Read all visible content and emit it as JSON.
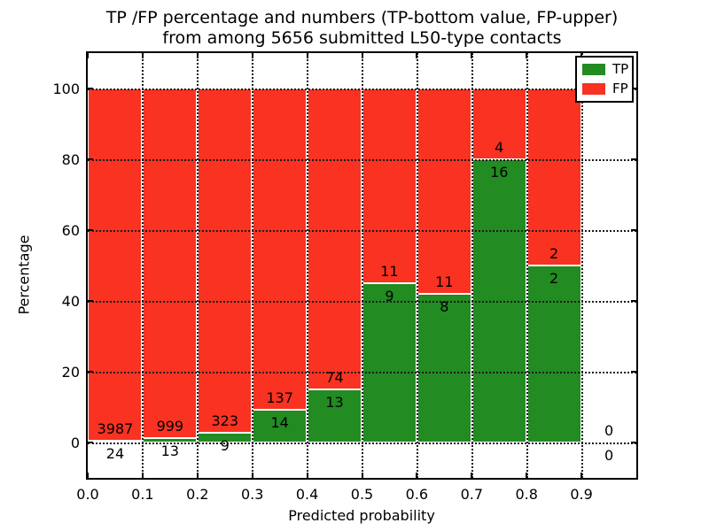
{
  "title": {
    "line1": "TP /FP percentage and numbers (TP-bottom value, FP-upper)",
    "line2": "from among 5656 submitted L50-type contacts"
  },
  "axes": {
    "xlabel": "Predicted probability",
    "ylabel": "Percentage",
    "x_tick_labels": [
      "0.0",
      "0.1",
      "0.2",
      "0.3",
      "0.4",
      "0.5",
      "0.6",
      "0.7",
      "0.8",
      "0.9"
    ],
    "y_tick_labels": [
      "0",
      "20",
      "40",
      "60",
      "80",
      "100"
    ],
    "y_ticks": [
      0,
      20,
      40,
      60,
      80,
      100
    ],
    "xlim": [
      0.0,
      1.0
    ],
    "ylim": [
      -10,
      110
    ],
    "grid": "dotted"
  },
  "legend": {
    "position": "upper right",
    "items": [
      {
        "label": "TP",
        "color": "#228B22"
      },
      {
        "label": "FP",
        "color": "#f93222"
      }
    ]
  },
  "colors": {
    "tp": "#228B22",
    "fp": "#f93222",
    "bar_edge": "#ffffff",
    "grid": "#1a1a1a",
    "text": "#000000",
    "background": "#ffffff"
  },
  "chart_data": {
    "type": "bar",
    "stacked": true,
    "title": "TP /FP percentage and numbers (TP-bottom value, FP-upper) from among 5656 submitted L50-type contacts",
    "xlabel": "Predicted probability",
    "ylabel": "Percentage",
    "total_submitted": 5656,
    "bin_width": 0.1,
    "bins": [
      {
        "x_start": 0.0,
        "x_end": 0.1,
        "center": 0.05,
        "tp_count": 24,
        "fp_count": 3987,
        "tp_pct": 0.6,
        "fp_pct": 99.4
      },
      {
        "x_start": 0.1,
        "x_end": 0.2,
        "center": 0.15,
        "tp_count": 13,
        "fp_count": 999,
        "tp_pct": 1.28,
        "fp_pct": 98.72
      },
      {
        "x_start": 0.2,
        "x_end": 0.3,
        "center": 0.25,
        "tp_count": 9,
        "fp_count": 323,
        "tp_pct": 2.71,
        "fp_pct": 97.29
      },
      {
        "x_start": 0.3,
        "x_end": 0.4,
        "center": 0.35,
        "tp_count": 14,
        "fp_count": 137,
        "tp_pct": 9.27,
        "fp_pct": 90.73
      },
      {
        "x_start": 0.4,
        "x_end": 0.5,
        "center": 0.45,
        "tp_count": 13,
        "fp_count": 74,
        "tp_pct": 14.94,
        "fp_pct": 85.06
      },
      {
        "x_start": 0.5,
        "x_end": 0.6,
        "center": 0.55,
        "tp_count": 9,
        "fp_count": 11,
        "tp_pct": 45.0,
        "fp_pct": 55.0
      },
      {
        "x_start": 0.6,
        "x_end": 0.7,
        "center": 0.65,
        "tp_count": 8,
        "fp_count": 11,
        "tp_pct": 42.11,
        "fp_pct": 57.89
      },
      {
        "x_start": 0.7,
        "x_end": 0.8,
        "center": 0.75,
        "tp_count": 16,
        "fp_count": 4,
        "tp_pct": 80.0,
        "fp_pct": 20.0
      },
      {
        "x_start": 0.8,
        "x_end": 0.9,
        "center": 0.85,
        "tp_count": 2,
        "fp_count": 2,
        "tp_pct": 50.0,
        "fp_pct": 50.0
      },
      {
        "x_start": 0.9,
        "x_end": 1.0,
        "center": 0.95,
        "tp_count": 0,
        "fp_count": 0,
        "tp_pct": 0.0,
        "fp_pct": 0.0
      }
    ]
  }
}
